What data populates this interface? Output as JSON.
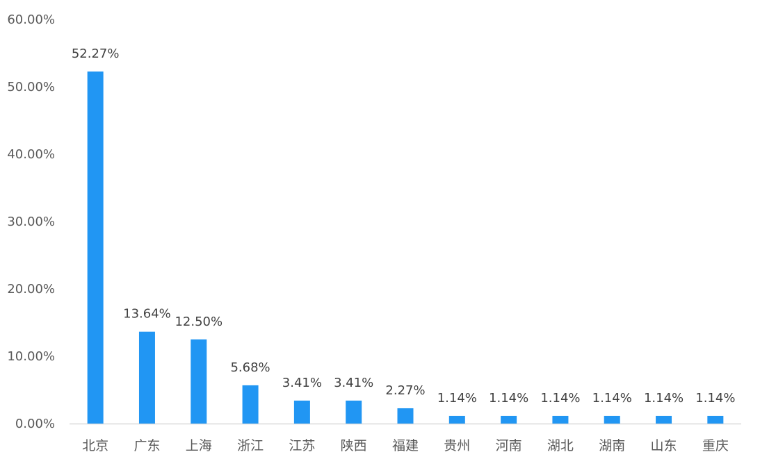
{
  "chart_data": {
    "type": "bar",
    "title": "",
    "xlabel": "",
    "ylabel": "",
    "categories": [
      "北京",
      "广东",
      "上海",
      "浙江",
      "江苏",
      "陕西",
      "福建",
      "贵州",
      "河南",
      "湖北",
      "湖南",
      "山东",
      "重庆"
    ],
    "values": [
      52.27,
      13.64,
      12.5,
      5.68,
      3.41,
      3.41,
      2.27,
      1.14,
      1.14,
      1.14,
      1.14,
      1.14,
      1.14
    ],
    "data_labels": [
      "52.27%",
      "13.64%",
      "12.50%",
      "5.68%",
      "3.41%",
      "3.41%",
      "2.27%",
      "1.14%",
      "1.14%",
      "1.14%",
      "1.14%",
      "1.14%",
      "1.14%"
    ],
    "ylim": [
      0,
      60
    ],
    "yticks": [
      0,
      10,
      20,
      30,
      40,
      50,
      60
    ],
    "ytick_labels": [
      "0.00%",
      "10.00%",
      "20.00%",
      "30.00%",
      "40.00%",
      "50.00%",
      "60.00%"
    ],
    "grid": false,
    "legend": "none",
    "colors": {
      "bar": "#2196F3",
      "axis": "#d9d9d9"
    }
  }
}
